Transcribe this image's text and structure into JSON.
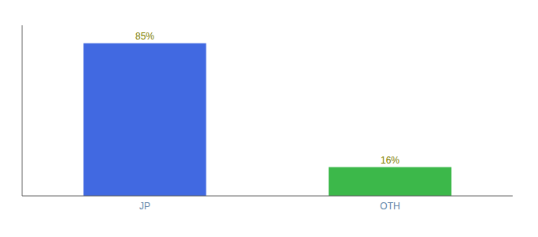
{
  "chart_data": {
    "type": "bar",
    "categories": [
      "JP",
      "OTH"
    ],
    "values": [
      85,
      16
    ],
    "value_labels": [
      "85%",
      "16%"
    ],
    "colors": [
      "#4169E1",
      "#3CB84A"
    ],
    "ylim": [
      0,
      95
    ],
    "data_labels": true,
    "tick_labels": "x"
  }
}
